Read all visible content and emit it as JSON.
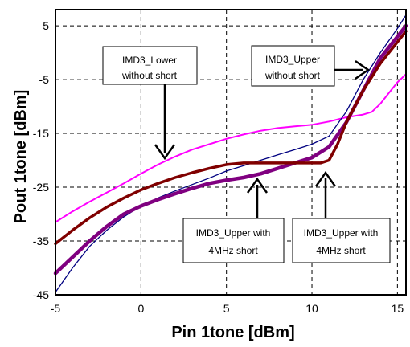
{
  "chart_data": {
    "type": "line",
    "xlabel": "Pin 1tone [dBm]",
    "ylabel": "Pout 1tone [dBm]",
    "xlim": [
      -5,
      15.5
    ],
    "ylim": [
      -45,
      8
    ],
    "x_ticks": [
      -5,
      0,
      5,
      10,
      15
    ],
    "y_ticks": [
      5,
      -5,
      -15,
      -25,
      -35,
      -45
    ],
    "grid": "dashed",
    "legend": "none",
    "series": [
      {
        "color": "#ff00ff",
        "width": 2,
        "points": [
          [
            -5,
            -31.5
          ],
          [
            -4,
            -29.5
          ],
          [
            -3,
            -27.7
          ],
          [
            -2,
            -26
          ],
          [
            -1,
            -24.3
          ],
          [
            0,
            -22.5
          ],
          [
            1,
            -20.8
          ],
          [
            2,
            -19.3
          ],
          [
            3,
            -18
          ],
          [
            4,
            -17
          ],
          [
            5,
            -16
          ],
          [
            6,
            -15.2
          ],
          [
            7,
            -14.5
          ],
          [
            8,
            -14
          ],
          [
            9,
            -13.7
          ],
          [
            10,
            -13.4
          ],
          [
            11,
            -12.8
          ],
          [
            12,
            -12
          ],
          [
            13,
            -11.5
          ],
          [
            13.5,
            -11
          ],
          [
            14,
            -9.5
          ],
          [
            14.5,
            -7.5
          ],
          [
            15,
            -5.5
          ],
          [
            15.5,
            -4
          ]
        ]
      },
      {
        "color": "#000080",
        "width": 1.3,
        "points": [
          [
            -5,
            -44.5
          ],
          [
            -4,
            -40
          ],
          [
            -3,
            -36
          ],
          [
            -2,
            -33
          ],
          [
            -1,
            -30.5
          ],
          [
            0,
            -28.5
          ],
          [
            1,
            -27
          ],
          [
            2,
            -25.7
          ],
          [
            3,
            -24.5
          ],
          [
            4,
            -23.3
          ],
          [
            5,
            -22
          ],
          [
            6,
            -21
          ],
          [
            7,
            -20
          ],
          [
            8,
            -19
          ],
          [
            9,
            -18
          ],
          [
            10,
            -17
          ],
          [
            11,
            -15.5
          ],
          [
            12,
            -11
          ],
          [
            13,
            -5
          ],
          [
            14,
            0
          ],
          [
            15,
            4.5
          ],
          [
            15.5,
            7
          ]
        ]
      },
      {
        "color": "#800080",
        "width": 4.5,
        "points": [
          [
            -5,
            -41
          ],
          [
            -4,
            -38
          ],
          [
            -3,
            -35
          ],
          [
            -2,
            -32.3
          ],
          [
            -1,
            -30
          ],
          [
            0,
            -28.5
          ],
          [
            1,
            -27.3
          ],
          [
            2,
            -26.2
          ],
          [
            3,
            -25.2
          ],
          [
            4,
            -24.3
          ],
          [
            5,
            -23.7
          ],
          [
            6,
            -23.2
          ],
          [
            7,
            -22.5
          ],
          [
            8,
            -21.5
          ],
          [
            9,
            -20.5
          ],
          [
            10,
            -19.5
          ],
          [
            11,
            -17.5
          ],
          [
            12,
            -13
          ],
          [
            13,
            -7
          ],
          [
            14,
            -1
          ],
          [
            15,
            3
          ],
          [
            15.5,
            5
          ]
        ]
      },
      {
        "color": "#800000",
        "width": 3.5,
        "points": [
          [
            -5,
            -35.5
          ],
          [
            -4,
            -33
          ],
          [
            -3,
            -30.7
          ],
          [
            -2,
            -28.7
          ],
          [
            -1,
            -27
          ],
          [
            0,
            -25.5
          ],
          [
            1,
            -24.3
          ],
          [
            2,
            -23.2
          ],
          [
            3,
            -22.3
          ],
          [
            4,
            -21.5
          ],
          [
            5,
            -20.8
          ],
          [
            6,
            -20.5
          ],
          [
            7,
            -20.5
          ],
          [
            8,
            -20.5
          ],
          [
            9,
            -20.5
          ],
          [
            10,
            -20.5
          ],
          [
            10.5,
            -20.5
          ],
          [
            11,
            -20
          ],
          [
            11.5,
            -17
          ],
          [
            12,
            -13
          ],
          [
            13,
            -7
          ],
          [
            14,
            -2
          ],
          [
            15,
            2
          ],
          [
            15.5,
            4
          ]
        ]
      }
    ],
    "annotations": [
      {
        "name": "imd3-lower-without-short",
        "lines": [
          "IMD3_Lower",
          "without short"
        ]
      },
      {
        "name": "imd3-upper-without-short",
        "lines": [
          "IMD3_Upper",
          "without short"
        ]
      },
      {
        "name": "imd3-upper-with-4mhz-short-a",
        "lines": [
          "IMD3_Upper with",
          "4MHz short"
        ]
      },
      {
        "name": "imd3-upper-with-4mhz-short-b",
        "lines": [
          "IMD3_Upper with",
          "4MHz short"
        ]
      }
    ]
  }
}
